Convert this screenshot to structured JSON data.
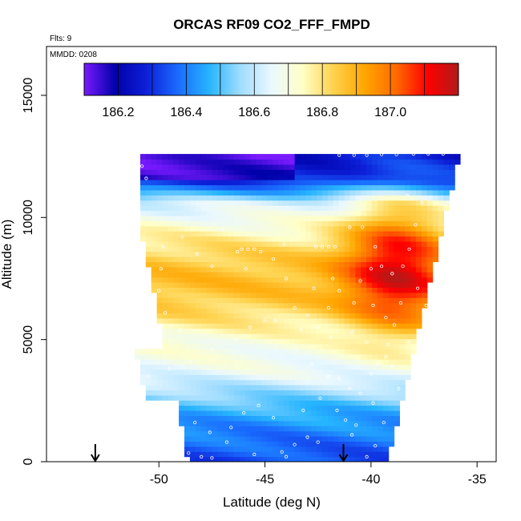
{
  "chart_data": {
    "type": "heatmap",
    "title": "ORCAS RF09 CO2_FFF_FMPD",
    "notes": {
      "flights": "Flts: 9",
      "mmdd": "MMDD: 0208"
    },
    "xlabel": "Latitude (deg N)",
    "ylabel": "Altitude (m)",
    "xlim": [
      -55.3,
      -34.1
    ],
    "ylim": [
      0,
      17000
    ],
    "x_ticks": [
      -50,
      -45,
      -40,
      -35
    ],
    "x_tick_labels": [
      "-50",
      "-45",
      "-40",
      "-35"
    ],
    "y_ticks": [
      0,
      5000,
      10000,
      15000
    ],
    "y_tick_labels": [
      "0",
      "5000",
      "10000",
      "15000"
    ],
    "grid": false,
    "colorbar": {
      "placement": "top",
      "range": [
        186.1,
        187.2
      ],
      "ticks": [
        186.2,
        186.4,
        186.6,
        186.8,
        187.0
      ],
      "tick_labels": [
        "186.2",
        "186.4",
        "186.6",
        "186.8",
        "187.0"
      ],
      "stops": [
        "#7a1aff",
        "#0000aa",
        "#0d20d8",
        "#1a6bff",
        "#26b4ff",
        "#9fdcff",
        "#eaf8ff",
        "#ffffc8",
        "#ffd24d",
        "#ffa500",
        "#ff6a00",
        "#ff0000",
        "#b11a1a"
      ]
    },
    "profile_markers": [
      -53.0,
      -41.3
    ],
    "field_extent": {
      "low_altitude_lat_range": [
        -48.6,
        -39.2
      ],
      "high_altitude_lat_range": [
        -51.0,
        -35.8
      ],
      "altitude_range": [
        0,
        12600
      ]
    },
    "field_features": [
      {
        "feature": "top low-value layer",
        "altitude_range": [
          11500,
          12400
        ],
        "lat_range": [
          -51,
          -43.5
        ],
        "value": 186.15
      },
      {
        "feature": "upper blue layer",
        "altitude_range": [
          10800,
          11500
        ],
        "lat_range": [
          -51.5,
          -38.5
        ],
        "value": 186.45
      },
      {
        "feature": "upper-right blue strip",
        "altitude_range": [
          12100,
          12600
        ],
        "lat_range": [
          -41.7,
          -35.8
        ],
        "value": 186.5
      },
      {
        "feature": "mid-troposphere orange",
        "altitude_range": [
          5000,
          10000
        ],
        "lat_range": [
          -53,
          -40
        ],
        "value": 186.85
      },
      {
        "feature": "high red plume",
        "altitude_range": [
          4800,
          11000
        ],
        "lat_range": [
          -42,
          -37
        ],
        "value": 187.05
      },
      {
        "feature": "pale layer",
        "altitude_range": [
          3000,
          4500
        ],
        "lat_range": [
          -54,
          -40
        ],
        "value": 186.72
      },
      {
        "feature": "boundary-layer blue",
        "altitude_range": [
          0,
          2500
        ],
        "lat_range": [
          -52,
          -39
        ],
        "value": 186.45
      }
    ],
    "sample_points": [
      [
        -51.0,
        12100
      ],
      [
        -50.8,
        12100
      ],
      [
        -41.5,
        12550
      ],
      [
        -40.8,
        12550
      ],
      [
        -40.2,
        12550
      ],
      [
        -39.5,
        12580
      ],
      [
        -38.8,
        12580
      ],
      [
        -38.0,
        12600
      ],
      [
        -37.3,
        12600
      ],
      [
        -36.6,
        12600
      ],
      [
        -51.5,
        11500
      ],
      [
        -50.6,
        11600
      ],
      [
        -52.0,
        11000
      ],
      [
        -49.8,
        8800
      ],
      [
        -49.9,
        7900
      ],
      [
        -50.0,
        7000
      ],
      [
        -49.7,
        6100
      ],
      [
        -49.0,
        5400
      ],
      [
        -48.2,
        8500
      ],
      [
        -47.0,
        9500
      ],
      [
        -46.3,
        8600
      ],
      [
        -46.1,
        8700
      ],
      [
        -45.8,
        8700
      ],
      [
        -45.5,
        8700
      ],
      [
        -45.2,
        8600
      ],
      [
        -45.9,
        7900
      ],
      [
        -44.6,
        8300
      ],
      [
        -44.1,
        8900
      ],
      [
        -43.7,
        9100
      ],
      [
        -42.6,
        8800
      ],
      [
        -42.3,
        8800
      ],
      [
        -42.0,
        8800
      ],
      [
        -41.7,
        8800
      ],
      [
        -41.0,
        9600
      ],
      [
        -40.4,
        9600
      ],
      [
        -39.8,
        8800
      ],
      [
        -39.5,
        8000
      ],
      [
        -39.0,
        7700
      ],
      [
        -38.5,
        8000
      ],
      [
        -38.2,
        8700
      ],
      [
        -37.9,
        9700
      ],
      [
        -37.6,
        10600
      ],
      [
        -38.3,
        10900
      ],
      [
        -40.0,
        7900
      ],
      [
        -40.5,
        7400
      ],
      [
        -41.5,
        7000
      ],
      [
        -42.0,
        6300
      ],
      [
        -43.0,
        6000
      ],
      [
        -43.6,
        6300
      ],
      [
        -44.5,
        5800
      ],
      [
        -45.0,
        5800
      ],
      [
        -45.7,
        5500
      ],
      [
        -46.4,
        5000
      ],
      [
        -47.5,
        4600
      ],
      [
        -48.5,
        4100
      ],
      [
        -49.5,
        3800
      ],
      [
        -50.5,
        3500
      ],
      [
        -43.5,
        4600
      ],
      [
        -42.8,
        4000
      ],
      [
        -42.0,
        3500
      ],
      [
        -41.5,
        3400
      ],
      [
        -41.0,
        3000
      ],
      [
        -40.5,
        2800
      ],
      [
        -40.0,
        3600
      ],
      [
        -39.7,
        4000
      ],
      [
        -39.3,
        4300
      ],
      [
        -39.0,
        3900
      ],
      [
        -38.7,
        3000
      ],
      [
        -39.9,
        2400
      ],
      [
        -39.4,
        1600
      ],
      [
        -40.7,
        1500
      ],
      [
        -41.2,
        1700
      ],
      [
        -42.5,
        800
      ],
      [
        -43.0,
        1000
      ],
      [
        -43.6,
        700
      ],
      [
        -44.2,
        400
      ],
      [
        -44.0,
        200
      ],
      [
        -45.5,
        300
      ],
      [
        -46.8,
        800
      ],
      [
        -47.6,
        1200
      ],
      [
        -48.3,
        1600
      ],
      [
        -48.0,
        200
      ],
      [
        -47.5,
        150
      ],
      [
        -48.6,
        350
      ],
      [
        -49.6,
        600
      ],
      [
        -50.3,
        900
      ],
      [
        -51.1,
        1200
      ],
      [
        -50.6,
        1700
      ],
      [
        -49.9,
        2100
      ],
      [
        -49.3,
        2400
      ],
      [
        -46.0,
        2000
      ],
      [
        -45.3,
        2300
      ],
      [
        -44.6,
        1800
      ],
      [
        -43.2,
        2100
      ],
      [
        -42.4,
        2600
      ],
      [
        -40.2,
        200
      ],
      [
        -39.8,
        650
      ],
      [
        -40.9,
        1100
      ],
      [
        -41.6,
        2100
      ],
      [
        -46.6,
        1400
      ],
      [
        -52.6,
        7000
      ],
      [
        -52.2,
        6200
      ],
      [
        -51.8,
        5600
      ],
      [
        -53.0,
        4700
      ],
      [
        -52.8,
        4000
      ],
      [
        -51.6,
        9400
      ],
      [
        -48.9,
        9200
      ],
      [
        -47.5,
        8000
      ],
      [
        -44.0,
        7500
      ],
      [
        -42.7,
        7100
      ],
      [
        -41.8,
        7500
      ],
      [
        -40.8,
        6500
      ],
      [
        -39.9,
        6400
      ],
      [
        -39.3,
        5900
      ],
      [
        -38.9,
        5600
      ],
      [
        -38.6,
        6500
      ],
      [
        -37.8,
        7100
      ],
      [
        -37.4,
        6400
      ],
      [
        -38.2,
        4900
      ],
      [
        -39.2,
        4800
      ],
      [
        -40.2,
        4900
      ],
      [
        -40.9,
        5300
      ],
      [
        -41.9,
        5100
      ],
      [
        -42.5,
        5500
      ],
      [
        -43.3,
        5400
      ]
    ]
  }
}
